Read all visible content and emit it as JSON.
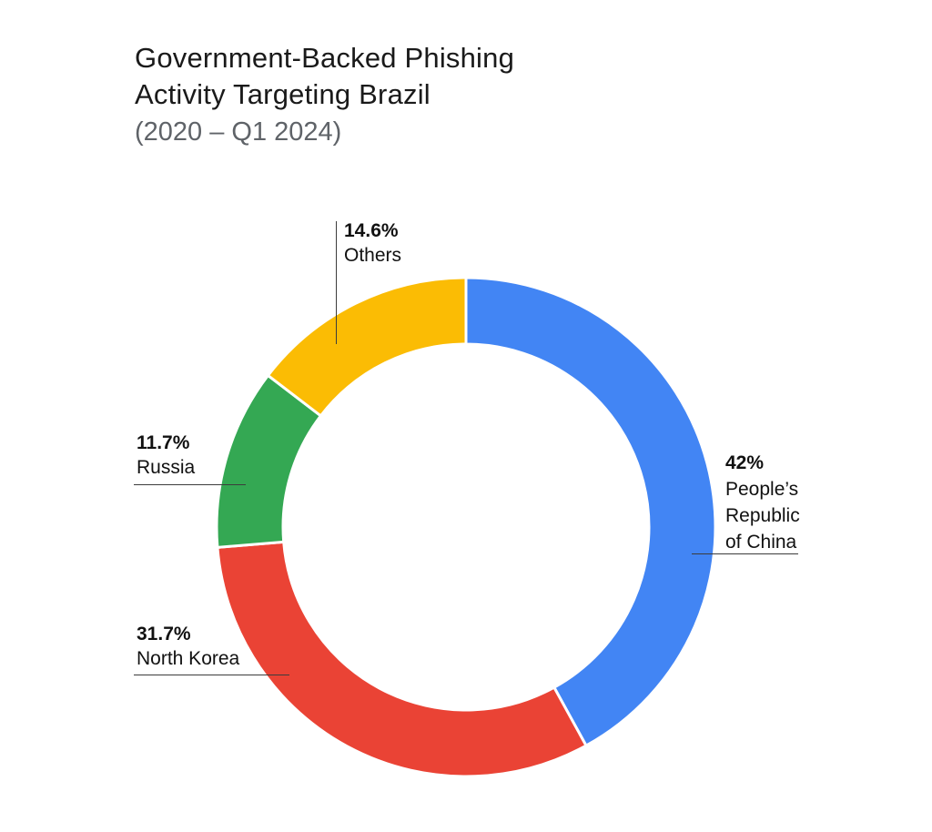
{
  "title": {
    "line1": "Government-Backed Phishing",
    "line2": "Activity Targeting Brazil",
    "subtitle": "(2020 – Q1 2024)"
  },
  "chart_data": {
    "type": "pie",
    "donut": true,
    "title": "Government-Backed Phishing Activity Targeting Brazil (2020 – Q1 2024)",
    "start_angle_deg": 0,
    "direction": "clockwise",
    "categories": [
      "People’s Republic of China",
      "North Korea",
      "Russia",
      "Others"
    ],
    "values": [
      42,
      31.7,
      11.7,
      14.6
    ],
    "colors": [
      "#4285F4",
      "#EA4335",
      "#34A853",
      "#FBBC04"
    ],
    "legend": "none",
    "labels": {
      "china": {
        "pct": "42%",
        "line1": "People’s",
        "line2": "Republic",
        "line3": "of China"
      },
      "nk": {
        "pct": "31.7%",
        "line1": "North Korea"
      },
      "russia": {
        "pct": "11.7%",
        "line1": "Russia"
      },
      "others": {
        "pct": "14.6%",
        "line1": "Others"
      }
    }
  },
  "colors": {
    "background": "#ffffff",
    "title_text": "#1a1a1a",
    "subtitle_text": "#5f6368",
    "label_text": "#111111",
    "leader_line": "#3c3c3c",
    "slice_gap": "#ffffff"
  }
}
